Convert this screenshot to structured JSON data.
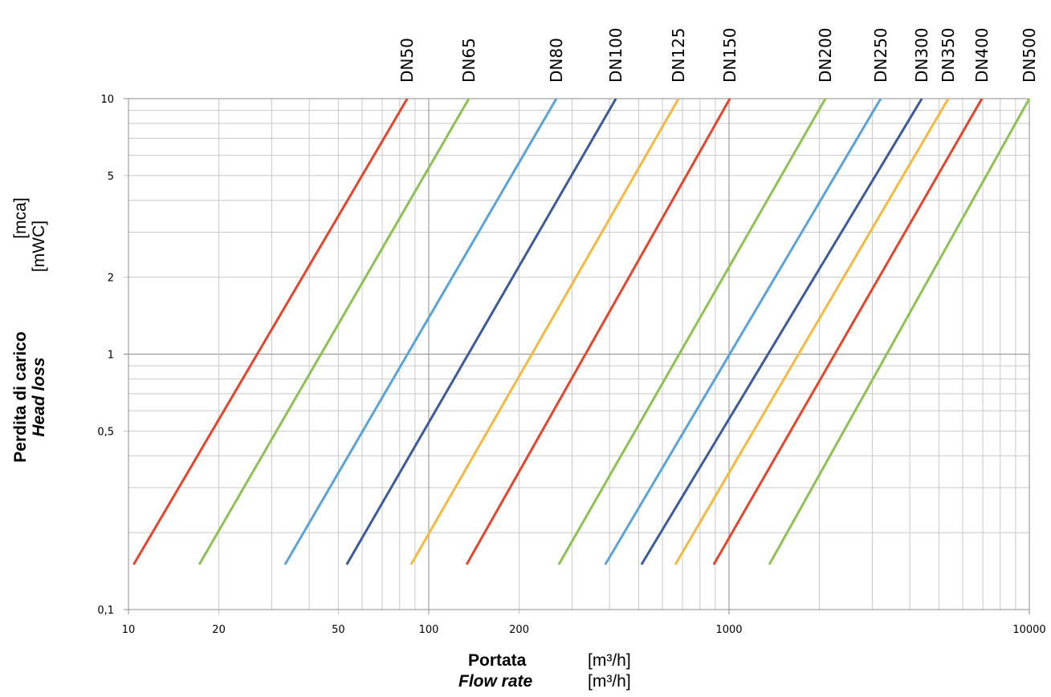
{
  "chart_data": {
    "type": "line",
    "log_x": true,
    "log_y": true,
    "grid": true,
    "y_title_it": "Perdita di carico",
    "y_title_en": "Head loss",
    "y_unit_it": "[mca]",
    "y_unit_en": "[mWC]",
    "x_title_it": "Portata",
    "x_title_en": "Flow rate",
    "x_unit": "[m³/h]",
    "xlim": [
      10,
      10000
    ],
    "ylim": [
      0.1,
      10
    ],
    "xticks": [
      10,
      20,
      50,
      100,
      200,
      1000,
      10000
    ],
    "xminor_ticks": [
      30,
      40,
      60,
      70,
      80,
      90,
      300,
      400,
      500,
      600,
      700,
      800,
      900,
      2000,
      3000,
      4000,
      5000,
      6000,
      7000,
      8000,
      9000
    ],
    "yticks": [
      {
        "value": 0.1,
        "label": "0,1"
      },
      {
        "value": 0.5,
        "label": "0,5"
      },
      1,
      2,
      5,
      10
    ],
    "yminor_ticks": [
      0.2,
      0.3,
      0.4,
      0.6,
      0.7,
      0.8,
      0.9,
      3,
      4,
      6,
      7,
      8,
      9
    ],
    "series": [
      {
        "name": "DN50",
        "color": "#e8432b",
        "x": [
          10.4,
          84.8
        ],
        "values": [
          0.15,
          10
        ]
      },
      {
        "name": "DN65",
        "color": "#8dc153",
        "x": [
          17.2,
          136
        ],
        "values": [
          0.15,
          10
        ]
      },
      {
        "name": "DN80",
        "color": "#5aa3d8",
        "x": [
          33.2,
          266
        ],
        "values": [
          0.15,
          10
        ]
      },
      {
        "name": "DN100",
        "color": "#3b5b9b",
        "x": [
          53.3,
          420
        ],
        "values": [
          0.15,
          10
        ]
      },
      {
        "name": "DN125",
        "color": "#f6b83f",
        "x": [
          87.3,
          679
        ],
        "values": [
          0.15,
          10
        ]
      },
      {
        "name": "DN150",
        "color": "#e8432b",
        "x": [
          133.6,
          1006
        ],
        "values": [
          0.15,
          10
        ]
      },
      {
        "name": "DN200",
        "color": "#8dc153",
        "x": [
          271,
          2094
        ],
        "values": [
          0.15,
          10
        ]
      },
      {
        "name": "DN250",
        "color": "#5aa3d8",
        "x": [
          387,
          3200
        ],
        "values": [
          0.15,
          10
        ]
      },
      {
        "name": "DN300",
        "color": "#3b5b9b",
        "x": [
          511,
          4385
        ],
        "values": [
          0.15,
          10
        ]
      },
      {
        "name": "DN350",
        "color": "#f6b83f",
        "x": [
          662,
          5370
        ],
        "values": [
          0.15,
          10
        ]
      },
      {
        "name": "DN400",
        "color": "#e8432b",
        "x": [
          889,
          6950
        ],
        "values": [
          0.15,
          10
        ]
      },
      {
        "name": "DN500",
        "color": "#8dc153",
        "x": [
          1361,
          10000
        ],
        "values": [
          0.15,
          10
        ]
      }
    ]
  }
}
